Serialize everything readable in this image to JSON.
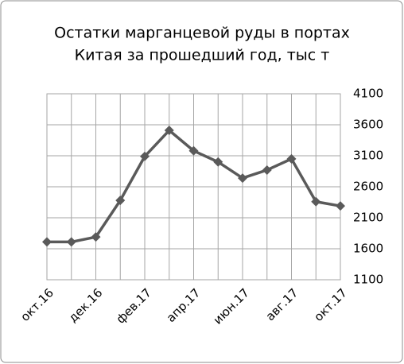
{
  "chart_data": {
    "type": "line",
    "title": [
      "Остатки марганцевой руды в портах",
      "Китая за прошедший год, тыс т"
    ],
    "categories": [
      "окт.16",
      null,
      "дек.16",
      null,
      "фев.17",
      null,
      "апр.17",
      null,
      "июн.17",
      null,
      "авг.17",
      null,
      "окт.17"
    ],
    "series": [
      {
        "color": "#5a5a5a",
        "values": [
          1710,
          1710,
          1790,
          2380,
          3090,
          3510,
          3180,
          3000,
          2740,
          2870,
          3050,
          2360,
          2290
        ]
      }
    ],
    "ylim": [
      1100,
      4100
    ],
    "yticks": [
      1100,
      1600,
      2100,
      2600,
      3100,
      3600,
      4100
    ],
    "grid": true
  }
}
